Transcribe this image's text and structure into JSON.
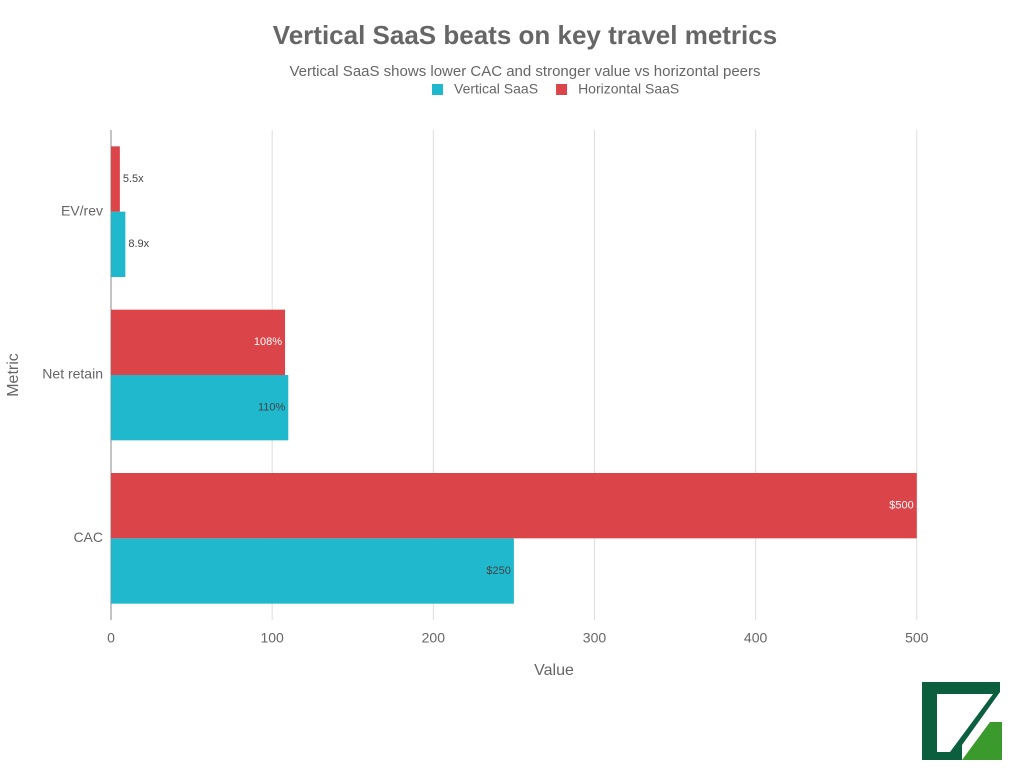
{
  "chart_data": {
    "type": "bar",
    "orientation": "horizontal",
    "title": "Vertical SaaS beats on key travel metrics",
    "subtitle": "Vertical SaaS shows lower CAC and stronger value vs horizontal peers",
    "x_label": "Value",
    "y_label": "Metric",
    "categories": [
      "CAC",
      "Net retain",
      "EV/rev"
    ],
    "series": [
      {
        "name": "Vertical SaaS",
        "color": "#1fb8cd",
        "values": [
          250,
          110,
          8.9
        ],
        "value_labels": [
          "$250",
          "110%",
          "8.9x"
        ]
      },
      {
        "name": "Horizontal SaaS",
        "color": "#db4549",
        "values": [
          500,
          108,
          5.5
        ],
        "value_labels": [
          "$500",
          "108%",
          "5.5x"
        ]
      }
    ],
    "xlim": [
      0,
      520
    ],
    "xticks": [
      0,
      100,
      200,
      300,
      400,
      500
    ],
    "grid": true
  }
}
